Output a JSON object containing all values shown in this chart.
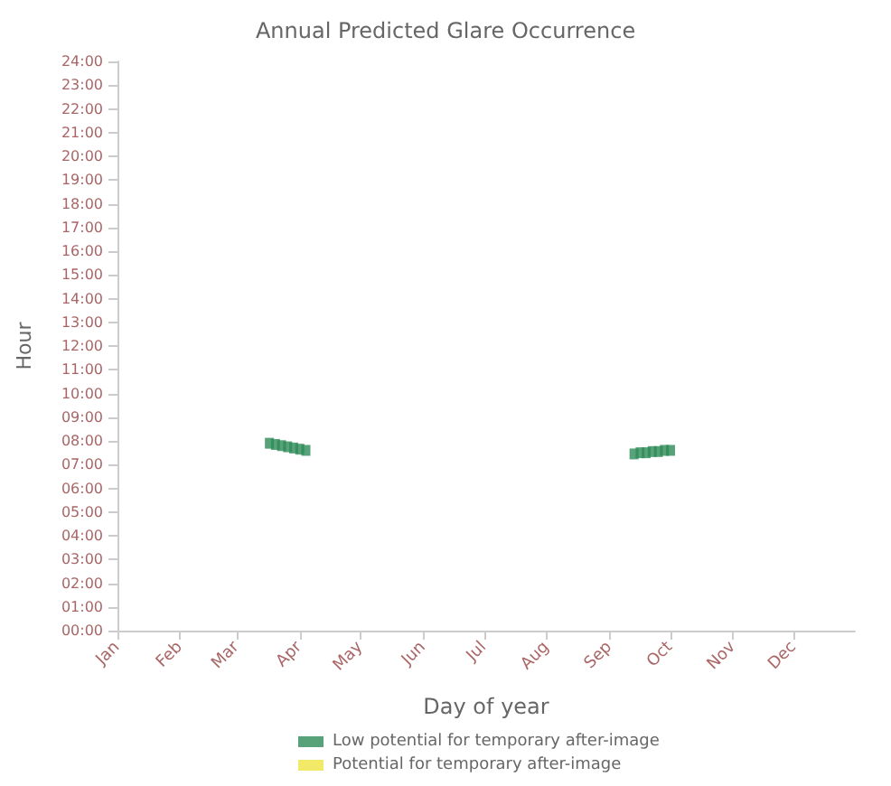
{
  "chart_data": {
    "type": "scatter",
    "title": "Annual Predicted Glare Occurrence",
    "xlabel": "Day of year",
    "ylabel": "Hour",
    "xlim": [
      "--01-01",
      "--12-31"
    ],
    "xticks": [
      {
        "value": "--01-01",
        "label": "Jan"
      },
      {
        "value": "--02-01",
        "label": "Feb"
      },
      {
        "value": "--03-01",
        "label": "Mar"
      },
      {
        "value": "--04-01",
        "label": "Apr"
      },
      {
        "value": "--05-01",
        "label": "May"
      },
      {
        "value": "--06-01",
        "label": "Jun"
      },
      {
        "value": "--07-01",
        "label": "Jul"
      },
      {
        "value": "--08-01",
        "label": "Aug"
      },
      {
        "value": "--09-01",
        "label": "Sep"
      },
      {
        "value": "--10-01",
        "label": "Oct"
      },
      {
        "value": "--11-01",
        "label": "Nov"
      },
      {
        "value": "--12-01",
        "label": "Dec"
      }
    ],
    "ylim": [
      0,
      24
    ],
    "yticks": [
      {
        "value": 0,
        "label": "00:00"
      },
      {
        "value": 1,
        "label": "01:00"
      },
      {
        "value": 2,
        "label": "02:00"
      },
      {
        "value": 3,
        "label": "03:00"
      },
      {
        "value": 4,
        "label": "04:00"
      },
      {
        "value": 5,
        "label": "05:00"
      },
      {
        "value": 6,
        "label": "06:00"
      },
      {
        "value": 7,
        "label": "07:00"
      },
      {
        "value": 8,
        "label": "08:00"
      },
      {
        "value": 9,
        "label": "09:00"
      },
      {
        "value": 10,
        "label": "10:00"
      },
      {
        "value": 11,
        "label": "11:00"
      },
      {
        "value": 12,
        "label": "12:00"
      },
      {
        "value": 13,
        "label": "13:00"
      },
      {
        "value": 14,
        "label": "14:00"
      },
      {
        "value": 15,
        "label": "15:00"
      },
      {
        "value": 16,
        "label": "16:00"
      },
      {
        "value": 17,
        "label": "17:00"
      },
      {
        "value": 18,
        "label": "18:00"
      },
      {
        "value": 19,
        "label": "19:00"
      },
      {
        "value": 20,
        "label": "20:00"
      },
      {
        "value": 21,
        "label": "21:00"
      },
      {
        "value": 22,
        "label": "22:00"
      },
      {
        "value": 23,
        "label": "23:00"
      },
      {
        "value": 24,
        "label": "24:00"
      }
    ],
    "marker": "square",
    "legend": "bottom",
    "series": [
      {
        "name": "Low potential for temporary after-image",
        "color": "#2e8b57",
        "x": [
          "--03-17",
          "--03-20",
          "--03-23",
          "--03-26",
          "--03-29",
          "--04-01",
          "--04-04",
          "--09-13",
          "--09-16",
          "--09-19",
          "--09-22",
          "--09-25",
          "--09-28",
          "--10-01"
        ],
        "values": [
          7.9,
          7.85,
          7.8,
          7.75,
          7.7,
          7.65,
          7.6,
          7.45,
          7.5,
          7.5,
          7.55,
          7.55,
          7.6,
          7.6
        ]
      },
      {
        "name": "Potential for temporary after-image",
        "color": "#f0e442"
      }
    ]
  }
}
